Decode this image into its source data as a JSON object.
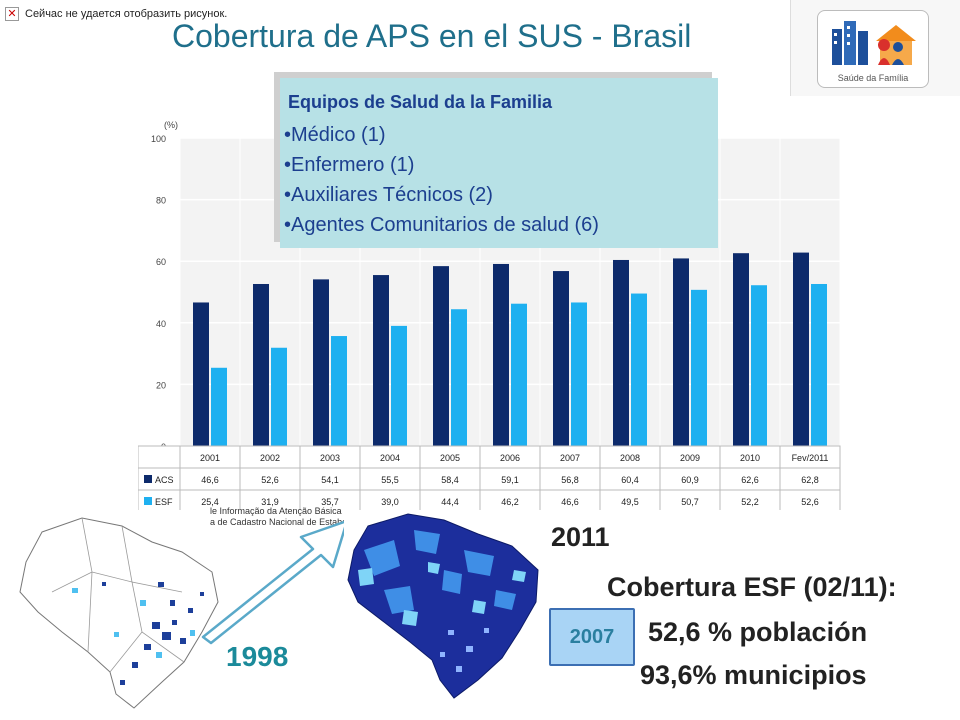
{
  "broken_image": {
    "text": "Сейчас не удается отобразить рисунок."
  },
  "slide": {
    "title": "Cobertura de APS en el SUS - Brasil",
    "logo_text": "Saúde da Família"
  },
  "team_box": {
    "title": "Equipos de Salud da la Familia",
    "items": [
      "Médico (1)",
      "Enfermero (1)",
      "Auxiliares Técnicos (2)",
      "Agentes Comunitarios de salud (6)"
    ]
  },
  "chart_data": {
    "type": "bar",
    "unit_label": "(%)",
    "categories": [
      "2001",
      "2002",
      "2003",
      "2004",
      "2005",
      "2006",
      "2007",
      "2008",
      "2009",
      "2010",
      "Fev/2011"
    ],
    "series": [
      {
        "name": "ACS",
        "color": "#0d2a6b",
        "values": [
          46.6,
          52.6,
          54.1,
          55.5,
          58.4,
          59.1,
          56.8,
          60.4,
          60.9,
          62.6,
          62.8
        ],
        "labels": [
          "46,6",
          "52,6",
          "54,1",
          "55,5",
          "58,4",
          "59,1",
          "56,8",
          "60,4",
          "60,9",
          "62,6",
          "62,8"
        ]
      },
      {
        "name": "ESF",
        "color": "#1eb0f0",
        "values": [
          25.4,
          31.9,
          35.7,
          39.0,
          44.4,
          46.2,
          46.6,
          49.5,
          50.7,
          52.2,
          52.6
        ],
        "labels": [
          "25,4",
          "31,9",
          "35,7",
          "39,0",
          "44,4",
          "46,2",
          "46,6",
          "49,5",
          "50,7",
          "52,2",
          "52,6"
        ]
      }
    ],
    "yticks": [
      "0",
      "20",
      "40",
      "60",
      "80",
      "100"
    ],
    "ylim": [
      0,
      100
    ],
    "grid": true
  },
  "source": {
    "line1": "le Informação da Atenção Básica",
    "line2": "a de Cadastro Nacional de Estabe"
  },
  "maps": {
    "year_left": "1998",
    "year_right": "2011",
    "badge": "2007"
  },
  "coverage": {
    "title": "Cobertura ESF (02/11):",
    "line1": "52,6 % población",
    "line2": "93,6% municipios"
  },
  "colors": {
    "title": "#1f6f8b",
    "acs": "#0d2a6b",
    "esf": "#1eb0f0",
    "box": "#b7e1e6"
  }
}
